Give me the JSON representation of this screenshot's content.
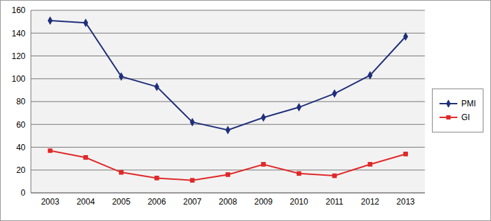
{
  "chart_data": {
    "type": "line",
    "categories": [
      "2003",
      "2004",
      "2005",
      "2006",
      "2007",
      "2008",
      "2009",
      "2010",
      "2011",
      "2012",
      "2013"
    ],
    "series": [
      {
        "name": "PMI",
        "color": "#1f2f7a",
        "marker": "diamond",
        "values": [
          151,
          149,
          102,
          93,
          62,
          55,
          66,
          75,
          87,
          103,
          137
        ]
      },
      {
        "name": "GI",
        "color": "#e02828",
        "marker": "square",
        "values": [
          37,
          31,
          18,
          13,
          11,
          16,
          25,
          17,
          15,
          25,
          34
        ]
      }
    ],
    "ylim": [
      0,
      160
    ],
    "yticks": [
      0,
      20,
      40,
      60,
      80,
      100,
      120,
      140,
      160
    ],
    "grid": true,
    "legend": "right"
  }
}
